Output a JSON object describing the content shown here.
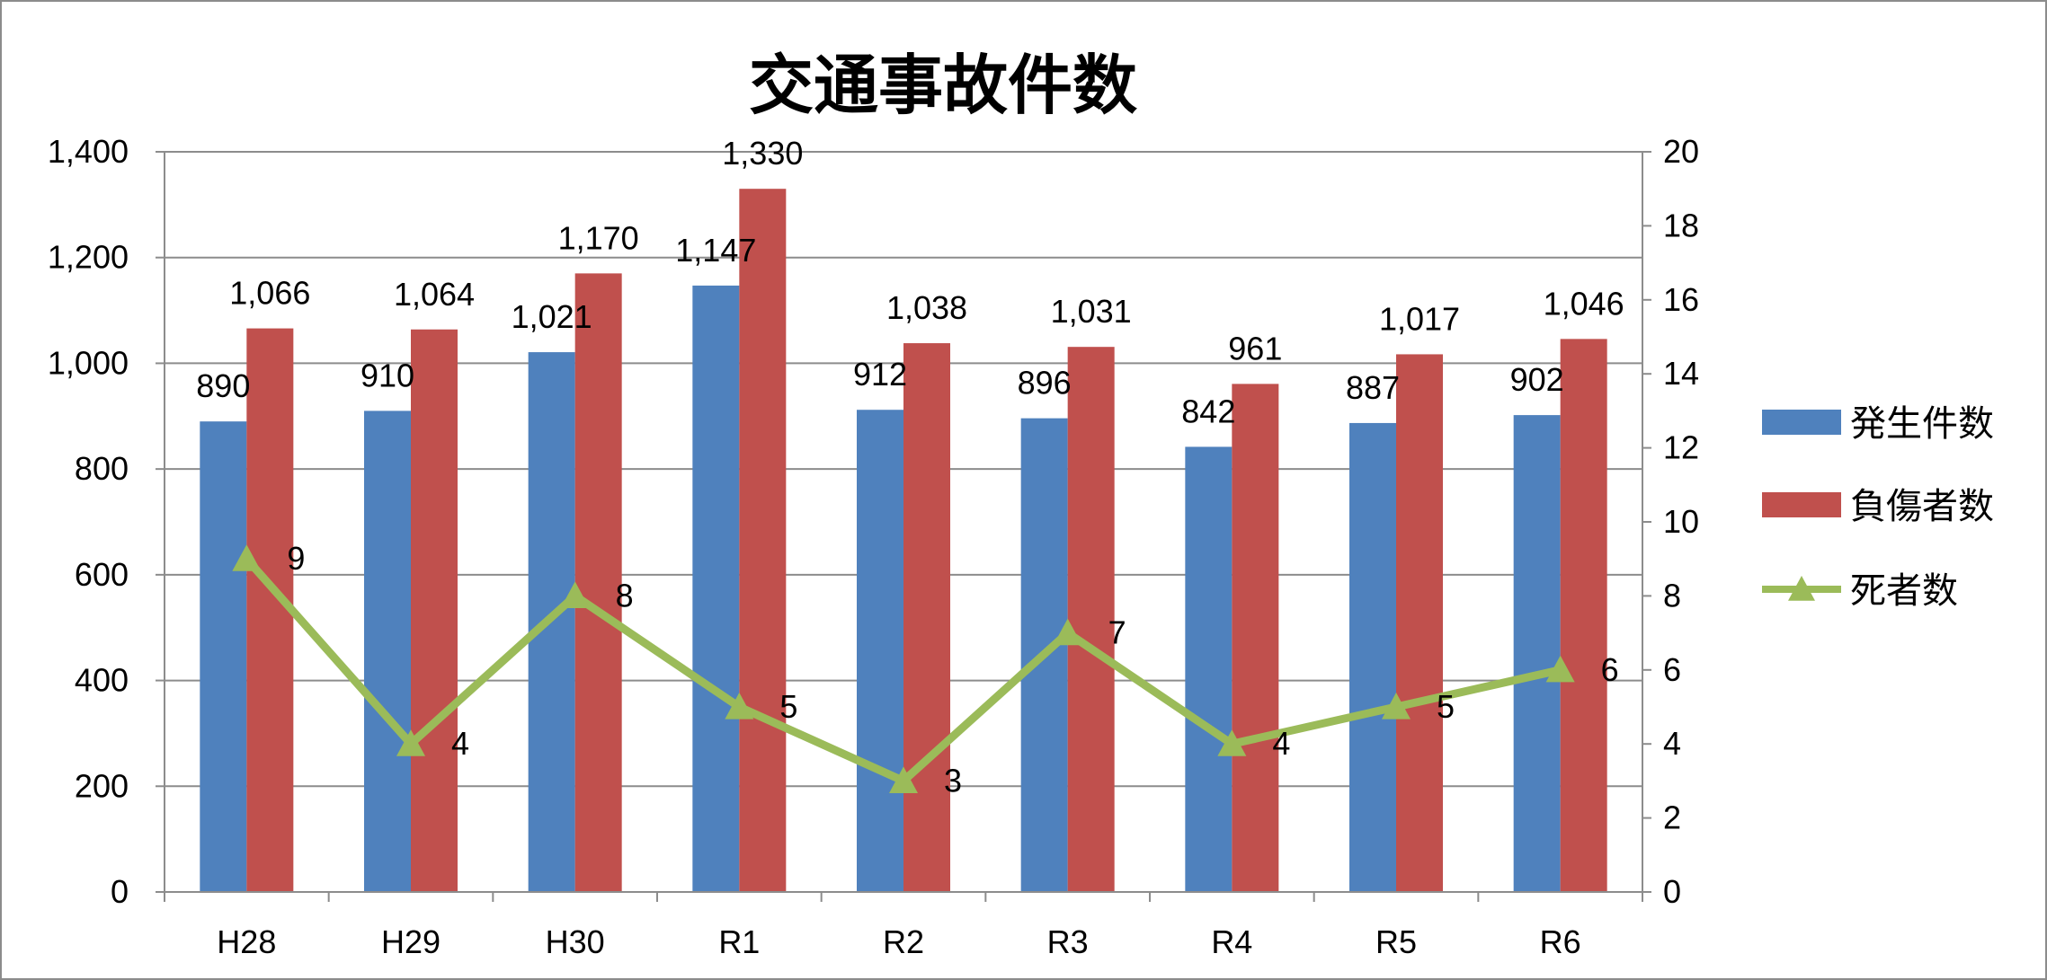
{
  "chart_data": {
    "type": "bar",
    "title": "交通事故件数",
    "categories": [
      "H28",
      "H29",
      "H30",
      "R1",
      "R2",
      "R3",
      "R4",
      "R5",
      "R6"
    ],
    "series": [
      {
        "name": "発生件数",
        "type": "bar",
        "axis": "left",
        "color": "#4F81BD",
        "values": [
          890,
          910,
          1021,
          1147,
          912,
          896,
          842,
          887,
          902
        ],
        "labels": [
          "890",
          "910",
          "1,021",
          "1,147",
          "912",
          "896",
          "842",
          "887",
          "902"
        ]
      },
      {
        "name": "負傷者数",
        "type": "bar",
        "axis": "left",
        "color": "#C0504D",
        "values": [
          1066,
          1064,
          1170,
          1330,
          1038,
          1031,
          961,
          1017,
          1046
        ],
        "labels": [
          "1,066",
          "1,064",
          "1,170",
          "1,330",
          "1,038",
          "1,031",
          "961",
          "1,017",
          "1,046"
        ]
      },
      {
        "name": "死者数",
        "type": "line",
        "axis": "right",
        "marker": "triangle",
        "color": "#9BBB59",
        "values": [
          9,
          4,
          8,
          5,
          3,
          7,
          4,
          5,
          6
        ],
        "labels": [
          "9",
          "4",
          "8",
          "5",
          "3",
          "7",
          "4",
          "5",
          "6"
        ]
      }
    ],
    "y_left": {
      "min": 0,
      "max": 1400,
      "ticks": [
        "0",
        "200",
        "400",
        "600",
        "800",
        "1,000",
        "1,200",
        "1,400"
      ]
    },
    "y_right": {
      "min": 0,
      "max": 20,
      "ticks": [
        "0",
        "2",
        "4",
        "6",
        "8",
        "10",
        "12",
        "14",
        "16",
        "18",
        "20"
      ]
    },
    "grid": true,
    "legend_position": "right"
  }
}
